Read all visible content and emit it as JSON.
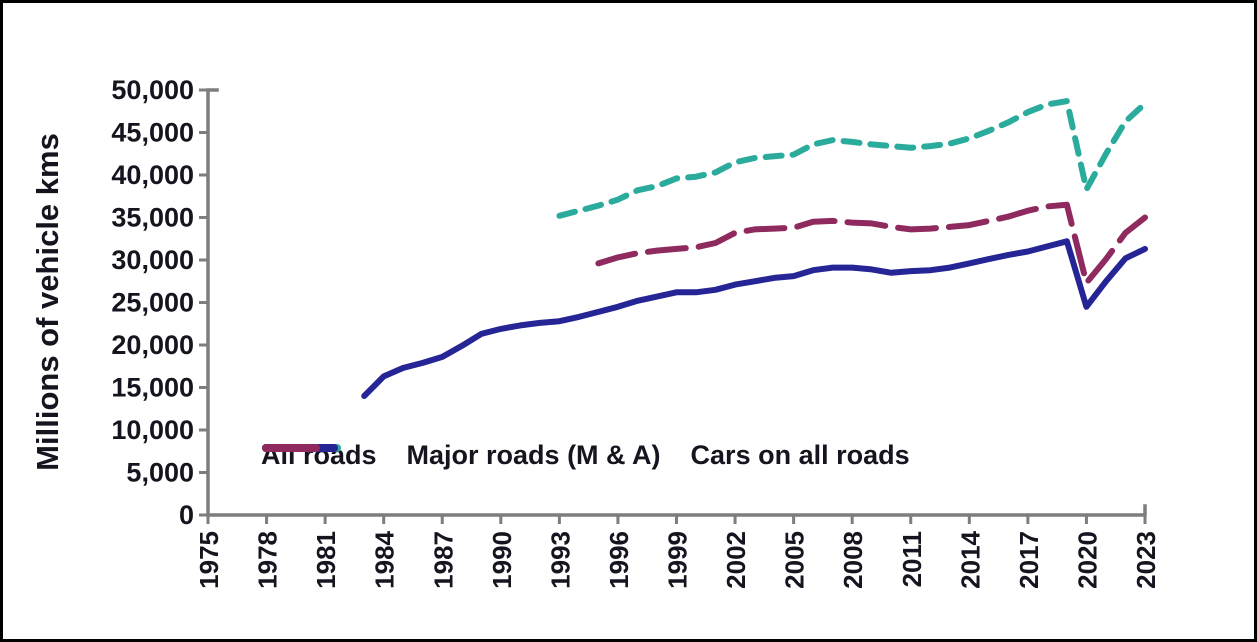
{
  "chart_data": {
    "type": "line",
    "title": "",
    "xlabel": "",
    "ylabel": "Millions of vehicle kms",
    "xlim": [
      1975,
      2023
    ],
    "ylim": [
      0,
      50000
    ],
    "grid": false,
    "legend_position": "inside-bottom-left",
    "x_ticks": [
      1975,
      1978,
      1981,
      1984,
      1987,
      1990,
      1993,
      1996,
      1999,
      2002,
      2005,
      2008,
      2011,
      2014,
      2017,
      2020,
      2023
    ],
    "y_tick_step": 5000,
    "y_tick_labels": [
      "0",
      "5,000",
      "10,000",
      "15,000",
      "20,000",
      "25,000",
      "30,000",
      "35,000",
      "40,000",
      "45,000",
      "50,000"
    ],
    "axis_color": "#7d7d7d",
    "label_color": "#15151f",
    "series": [
      {
        "name": "All roads",
        "color": "#2aab9b",
        "line_style": "dashed",
        "start_year": 1993,
        "interval": 1,
        "values": [
          35200,
          35800,
          36400,
          37100,
          38200,
          38700,
          39600,
          39800,
          40300,
          41500,
          42000,
          42200,
          42400,
          43600,
          44100,
          43900,
          43600,
          43400,
          43200,
          43400,
          43700,
          44300,
          45200,
          46200,
          47400,
          48300,
          48700,
          38300,
          42500,
          46300,
          48400
        ]
      },
      {
        "name": "Major roads (M & A)",
        "color": "#252595",
        "line_style": "solid",
        "start_year": 1983,
        "interval": 1,
        "values": [
          14000,
          16300,
          17300,
          17900,
          18600,
          19900,
          21300,
          21900,
          22300,
          22600,
          22800,
          23300,
          23900,
          24500,
          25200,
          25700,
          26200,
          26200,
          26500,
          27100,
          27500,
          27900,
          28100,
          28800,
          29100,
          29100,
          28900,
          28500,
          28700,
          28800,
          29100,
          29600,
          30100,
          30600,
          31000,
          31600,
          32200,
          24500,
          27500,
          30200,
          31300
        ]
      },
      {
        "name": "Cars on all roads",
        "color": "#8e2a5e",
        "line_style": "long-dashed",
        "start_year": 1995,
        "interval": 1,
        "values": [
          29600,
          30300,
          30800,
          31100,
          31300,
          31500,
          32000,
          33200,
          33600,
          33700,
          33800,
          34500,
          34600,
          34400,
          34300,
          33900,
          33600,
          33700,
          33900,
          34100,
          34600,
          35100,
          35800,
          36300,
          36500,
          27300,
          30100,
          33200,
          35000
        ]
      }
    ]
  }
}
